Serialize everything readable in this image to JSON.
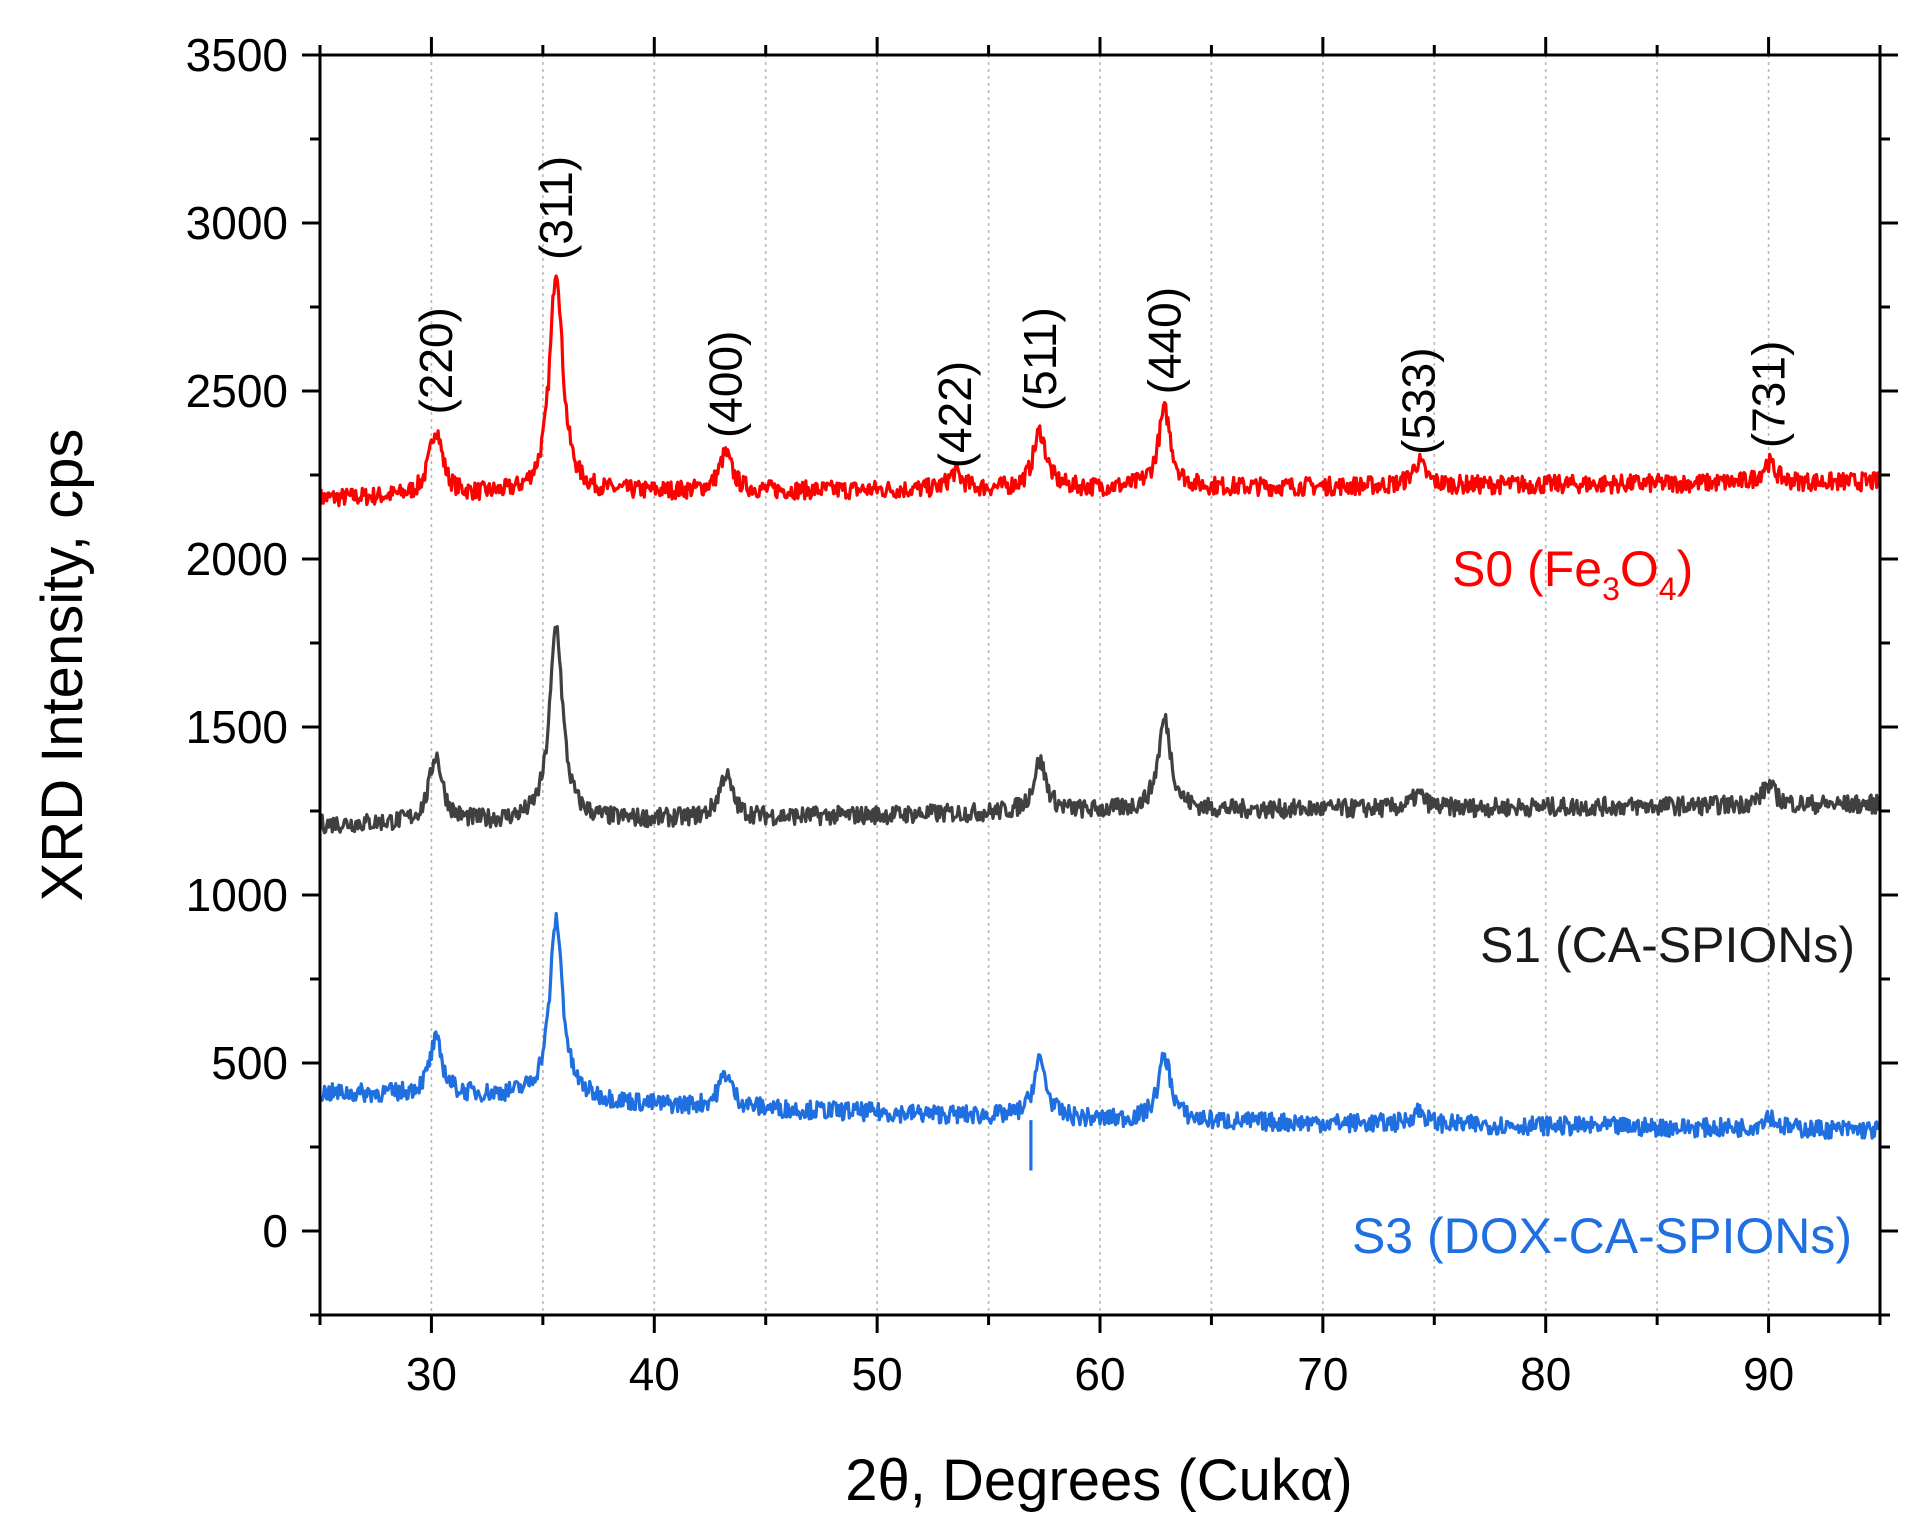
{
  "chart_data": {
    "type": "line",
    "xlabel": "2θ, Degrees (Cukα)",
    "ylabel": "XRD Intensity, cps",
    "xlim": [
      25,
      95
    ],
    "ylim": [
      -250,
      3500
    ],
    "xticks": [
      30,
      40,
      50,
      60,
      70,
      80,
      90
    ],
    "yticks": [
      0,
      500,
      1000,
      1500,
      2000,
      2500,
      3000,
      3500
    ],
    "vertical_gridlines": [
      30,
      35,
      40,
      45,
      50,
      55,
      60,
      65,
      70,
      75,
      80,
      85,
      90
    ],
    "peaks": [
      {
        "label": "(220)",
        "x": 30.2
      },
      {
        "label": "(311)",
        "x": 35.6
      },
      {
        "label": "(400)",
        "x": 43.2
      },
      {
        "label": "(422)",
        "x": 53.5
      },
      {
        "label": "(511)",
        "x": 57.3
      },
      {
        "label": "(440)",
        "x": 62.9
      },
      {
        "label": "(533)",
        "x": 74.3
      },
      {
        "label": "(731)",
        "x": 90.0
      }
    ],
    "series": [
      {
        "name": "S0 (Fe3O4)",
        "label_main": "S0 (Fe",
        "label_sub1": "3",
        "label_mid": "O",
        "label_sub2": "4",
        "label_end": ")",
        "color": "#ff0000",
        "baseline": [
          [
            25,
            2180
          ],
          [
            40,
            2200
          ],
          [
            60,
            2210
          ],
          [
            95,
            2230
          ]
        ],
        "peaks": [
          [
            30.2,
            200
          ],
          [
            35.6,
            670
          ],
          [
            43.2,
            110
          ],
          [
            53.5,
            50
          ],
          [
            57.3,
            170
          ],
          [
            62.9,
            230
          ],
          [
            74.3,
            70
          ],
          [
            90.0,
            60
          ]
        ]
      },
      {
        "name": "S1 (CA-SPIONs)",
        "color": "#404040",
        "baseline": [
          [
            25,
            1210
          ],
          [
            40,
            1225
          ],
          [
            60,
            1250
          ],
          [
            95,
            1270
          ]
        ],
        "peaks": [
          [
            30.2,
            200
          ],
          [
            35.6,
            580
          ],
          [
            43.2,
            130
          ],
          [
            57.3,
            150
          ],
          [
            62.9,
            270
          ],
          [
            74.3,
            40
          ],
          [
            90.0,
            60
          ]
        ]
      },
      {
        "name": "S3 (DOX-CA-SPIONs)",
        "color": "#1f6fe0",
        "baseline": [
          [
            25,
            410
          ],
          [
            35,
            400
          ],
          [
            40,
            375
          ],
          [
            60,
            330
          ],
          [
            95,
            300
          ]
        ],
        "peaks": [
          [
            30.2,
            160
          ],
          [
            35.6,
            530
          ],
          [
            43.2,
            100
          ],
          [
            57.3,
            170
          ],
          [
            62.9,
            190
          ],
          [
            74.3,
            40
          ],
          [
            90.0,
            40
          ]
        ]
      }
    ]
  }
}
